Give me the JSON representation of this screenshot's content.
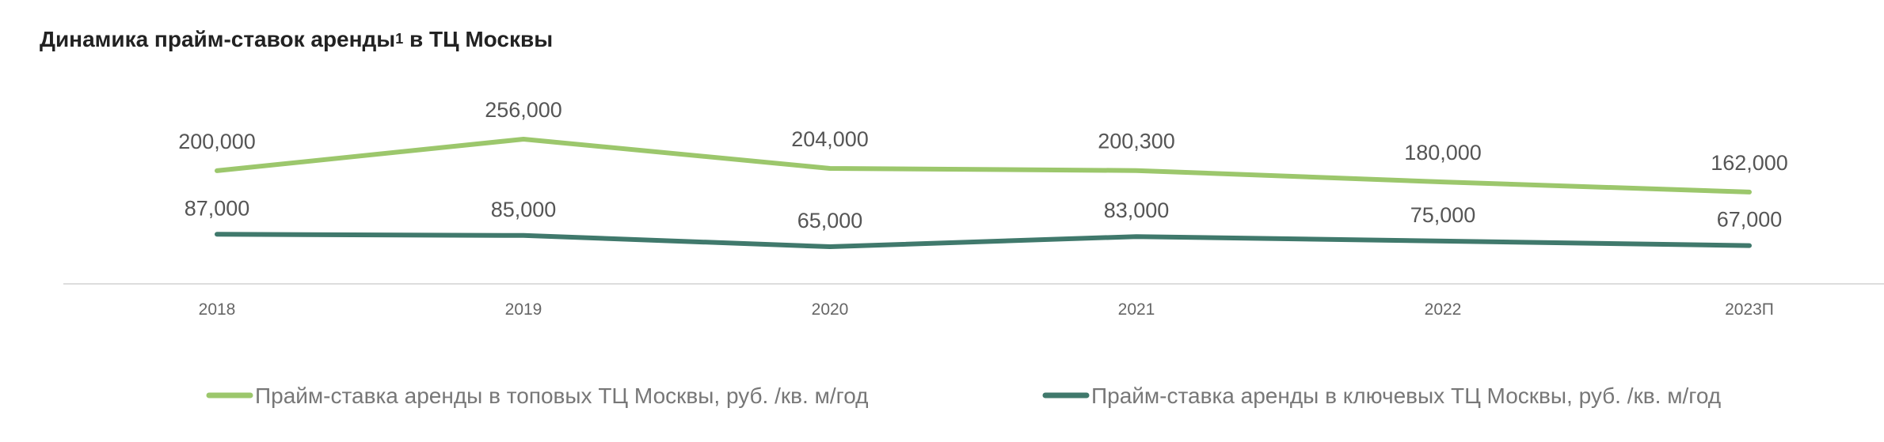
{
  "title_main": "Динамика прайм-ставок аренды",
  "title_sup": "1",
  "title_tail": " в ТЦ Москвы",
  "colors": {
    "top": "#9cc76c",
    "key": "#40796c",
    "axis": "#dddddd"
  },
  "chart_data": {
    "type": "line",
    "title": "Динамика прайм-ставок аренды¹ в ТЦ Москвы",
    "categories": [
      "2018",
      "2019",
      "2020",
      "2021",
      "2022",
      "2023П"
    ],
    "series": [
      {
        "name": "Прайм-ставка аренды в топовых ТЦ Москвы, руб. /кв. м/год",
        "values": [
          200000,
          256000,
          204000,
          200300,
          180000,
          162000
        ],
        "labels": [
          "200,000",
          "256,000",
          "204,000",
          "200,300",
          "180,000",
          "162,000"
        ]
      },
      {
        "name": "Прайм-ставка аренды в ключевых ТЦ Москвы, руб. /кв. м/год",
        "values": [
          87000,
          85000,
          65000,
          83000,
          75000,
          67000
        ],
        "labels": [
          "87,000",
          "85,000",
          "65,000",
          "83,000",
          "75,000",
          "67,000"
        ]
      }
    ],
    "grid": false,
    "legend": "bottom"
  }
}
